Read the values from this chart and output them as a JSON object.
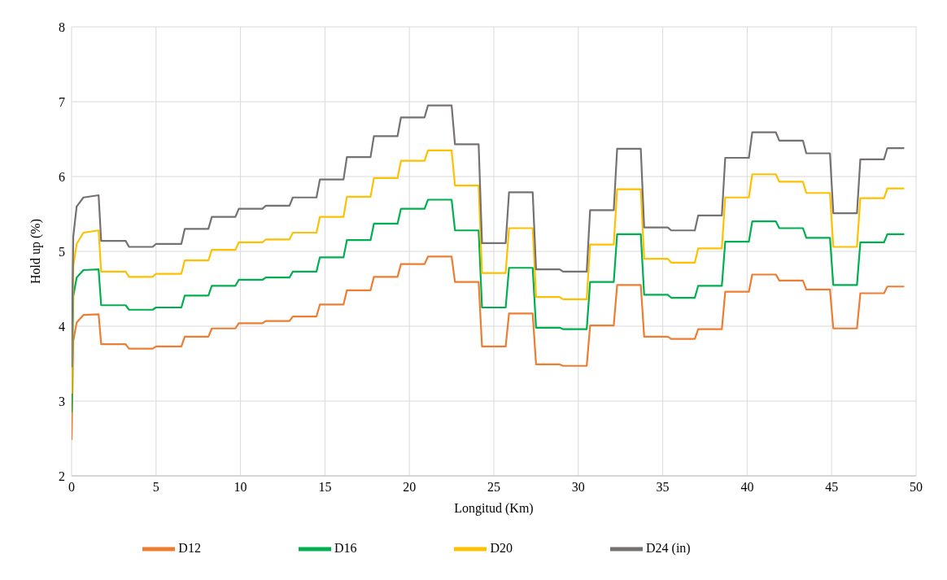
{
  "chart_data": {
    "type": "line",
    "xlabel": "Longitud (Km)",
    "ylabel": "Hold up (%)",
    "xlim": [
      0,
      50
    ],
    "xticks": [
      0,
      5,
      10,
      15,
      20,
      25,
      30,
      35,
      40,
      45,
      50
    ],
    "ylim": [
      2,
      8
    ],
    "yticks": [
      2,
      3,
      4,
      5,
      6,
      7,
      8
    ],
    "grid": true,
    "legend": "bottom",
    "marker": "none",
    "line_style": "solid",
    "x": [
      0,
      0.1,
      0.3,
      0.7,
      1.6,
      1.75,
      3.2,
      3.4,
      4.8,
      5.0,
      6.5,
      6.7,
      8.1,
      8.3,
      9.7,
      9.9,
      11.3,
      11.5,
      12.9,
      13.1,
      14.5,
      14.7,
      16.1,
      16.3,
      17.7,
      17.9,
      19.3,
      19.5,
      20.9,
      21.1,
      22.5,
      22.7,
      24.1,
      24.3,
      25.7,
      25.9,
      27.3,
      27.5,
      28.9,
      29.1,
      30.5,
      30.7,
      32.1,
      32.3,
      33.7,
      33.9,
      35.3,
      35.5,
      36.9,
      37.1,
      38.5,
      38.7,
      40.1,
      40.3,
      41.7,
      41.9,
      43.3,
      43.5,
      44.9,
      45.1,
      46.5,
      46.7,
      48.1,
      48.3,
      49.3
    ],
    "series": [
      {
        "name": "D12",
        "color": "#ed7d31",
        "values": [
          2.48,
          3.8,
          4.05,
          4.15,
          4.16,
          3.76,
          3.76,
          3.7,
          3.7,
          3.73,
          3.73,
          3.86,
          3.86,
          3.97,
          3.97,
          4.04,
          4.04,
          4.07,
          4.07,
          4.13,
          4.13,
          4.29,
          4.29,
          4.48,
          4.48,
          4.66,
          4.66,
          4.83,
          4.83,
          4.93,
          4.93,
          4.59,
          4.59,
          3.73,
          3.73,
          4.17,
          4.17,
          3.49,
          3.49,
          3.47,
          3.47,
          4.01,
          4.01,
          4.55,
          4.55,
          3.86,
          3.86,
          3.83,
          3.83,
          3.96,
          3.96,
          4.46,
          4.46,
          4.69,
          4.69,
          4.61,
          4.61,
          4.49,
          4.49,
          3.97,
          3.97,
          4.44,
          4.44,
          4.53,
          4.53
        ]
      },
      {
        "name": "D16",
        "color": "#00b050",
        "values": [
          2.85,
          4.4,
          4.65,
          4.75,
          4.76,
          4.28,
          4.28,
          4.22,
          4.22,
          4.25,
          4.25,
          4.41,
          4.41,
          4.54,
          4.54,
          4.62,
          4.62,
          4.65,
          4.65,
          4.73,
          4.73,
          4.92,
          4.92,
          5.15,
          5.15,
          5.37,
          5.37,
          5.57,
          5.57,
          5.69,
          5.69,
          5.28,
          5.28,
          4.25,
          4.25,
          4.78,
          4.78,
          3.98,
          3.98,
          3.96,
          3.96,
          4.59,
          4.59,
          5.23,
          5.23,
          4.42,
          4.42,
          4.38,
          4.38,
          4.54,
          4.54,
          5.13,
          5.13,
          5.4,
          5.4,
          5.31,
          5.31,
          5.18,
          5.18,
          4.55,
          4.55,
          5.12,
          5.12,
          5.23,
          5.23
        ]
      },
      {
        "name": "D20",
        "color": "#ffc000",
        "values": [
          3.1,
          4.8,
          5.1,
          5.25,
          5.28,
          4.73,
          4.73,
          4.66,
          4.66,
          4.7,
          4.7,
          4.88,
          4.88,
          5.02,
          5.02,
          5.12,
          5.12,
          5.16,
          5.16,
          5.25,
          5.25,
          5.46,
          5.46,
          5.73,
          5.73,
          5.98,
          5.98,
          6.21,
          6.21,
          6.35,
          6.35,
          5.88,
          5.88,
          4.71,
          4.71,
          5.31,
          5.31,
          4.39,
          4.39,
          4.36,
          4.36,
          5.09,
          5.09,
          5.83,
          5.83,
          4.9,
          4.9,
          4.85,
          4.85,
          5.04,
          5.04,
          5.72,
          5.72,
          6.03,
          6.03,
          5.93,
          5.93,
          5.78,
          5.78,
          5.06,
          5.06,
          5.71,
          5.71,
          5.84,
          5.84
        ]
      },
      {
        "name": "D24 (in)",
        "color": "#767171",
        "values": [
          3.45,
          5.2,
          5.6,
          5.72,
          5.75,
          5.14,
          5.14,
          5.06,
          5.06,
          5.1,
          5.1,
          5.3,
          5.3,
          5.46,
          5.46,
          5.57,
          5.57,
          5.61,
          5.61,
          5.72,
          5.72,
          5.96,
          5.96,
          6.26,
          6.26,
          6.54,
          6.54,
          6.79,
          6.79,
          6.95,
          6.95,
          6.43,
          6.43,
          5.11,
          5.11,
          5.79,
          5.79,
          4.76,
          4.76,
          4.73,
          4.73,
          5.55,
          5.55,
          6.37,
          6.37,
          5.32,
          5.32,
          5.28,
          5.28,
          5.48,
          5.48,
          6.25,
          6.25,
          6.59,
          6.59,
          6.48,
          6.48,
          6.31,
          6.31,
          5.51,
          5.51,
          6.23,
          6.23,
          6.38,
          6.38
        ]
      }
    ]
  }
}
